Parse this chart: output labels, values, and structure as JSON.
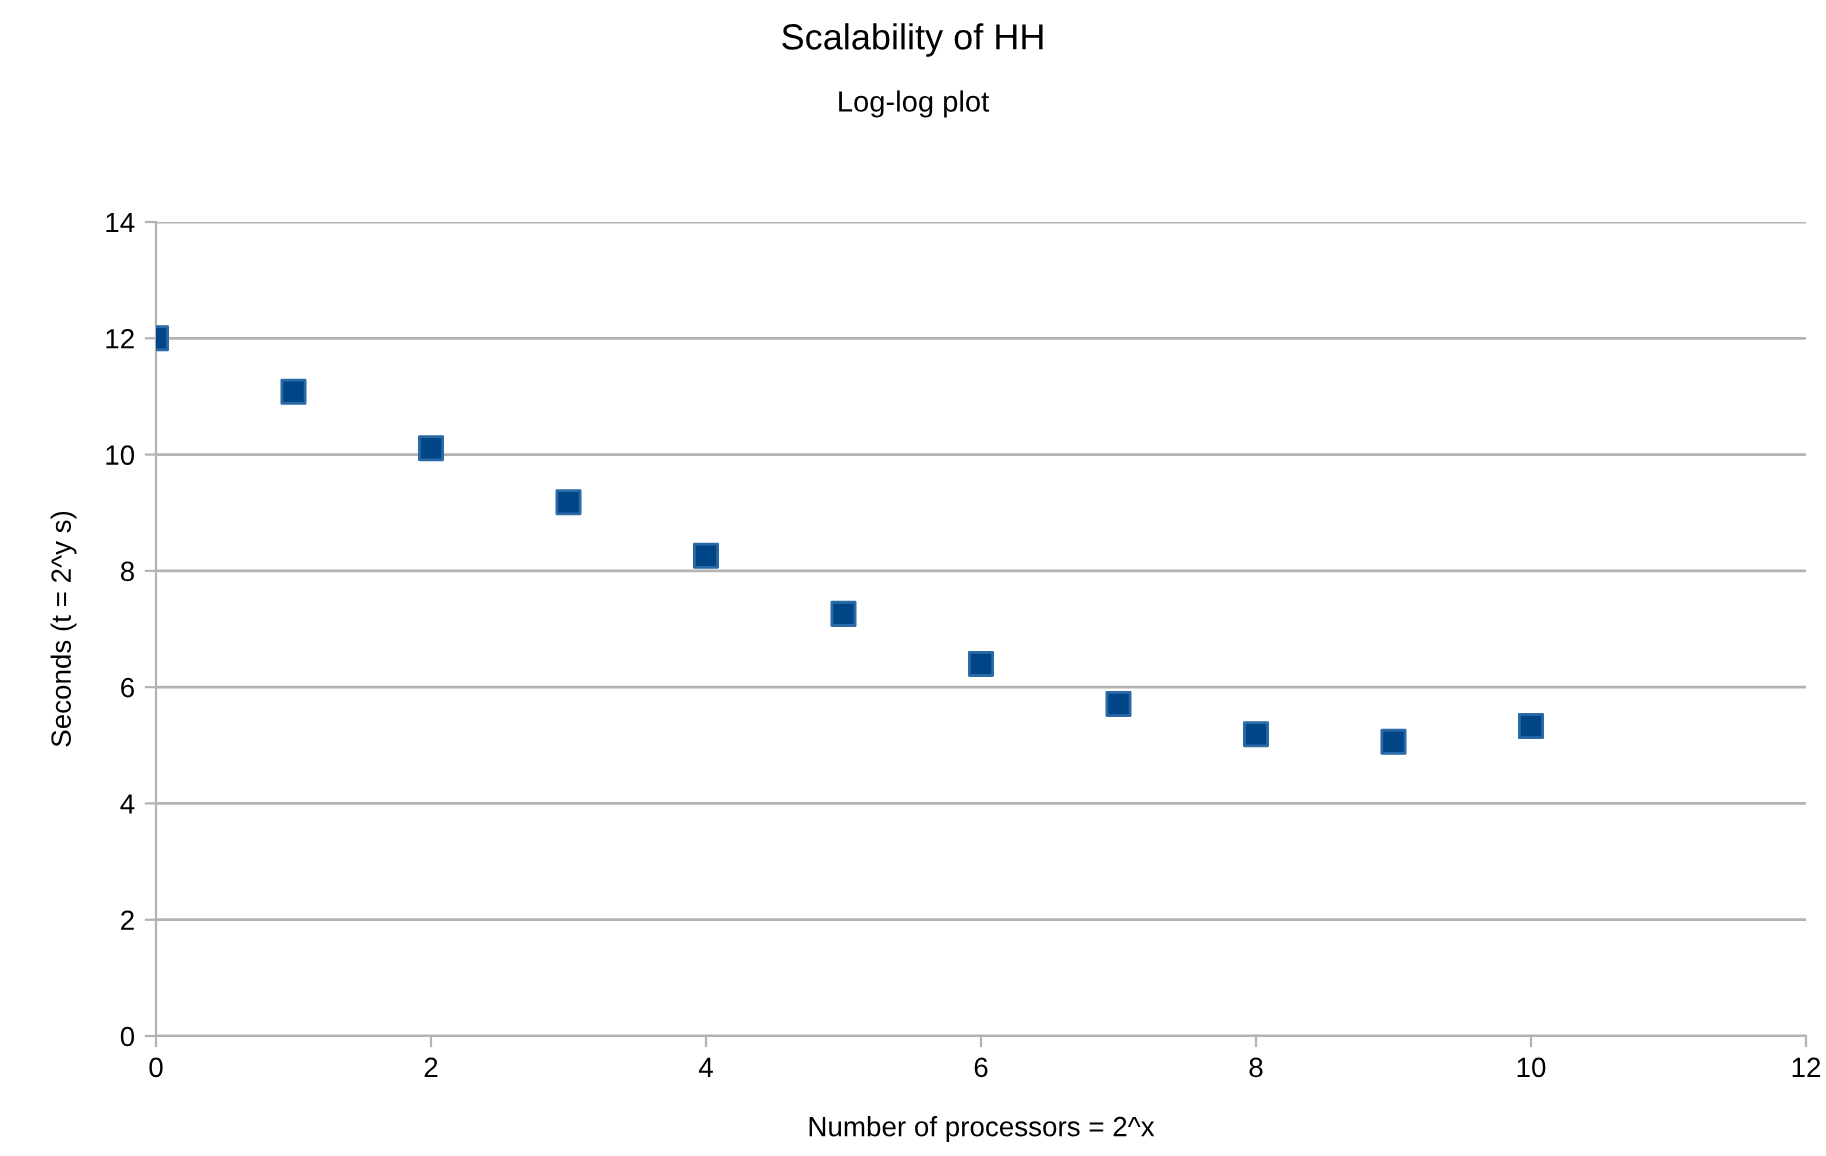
{
  "chart_data": {
    "type": "scatter",
    "title": "Scalability of HH",
    "subtitle": "Log-log plot",
    "xlabel": "Number of processors = 2^x",
    "ylabel": "Seconds (t = 2^y s)",
    "x": [
      0,
      1,
      2,
      3,
      4,
      5,
      6,
      7,
      8,
      9,
      10
    ],
    "series": [
      {
        "color": "#004586",
        "values": [
          12.0,
          11.08,
          10.11,
          9.18,
          8.26,
          7.26,
          6.4,
          5.71,
          5.19,
          5.06,
          5.33
        ]
      }
    ],
    "xlim": [
      0,
      12
    ],
    "xticks": [
      0,
      2,
      4,
      6,
      8,
      10,
      12
    ],
    "ylim": [
      0,
      14
    ],
    "yticks": [
      0,
      2,
      4,
      6,
      8,
      10,
      12,
      14
    ],
    "grid": "y",
    "marker": "square",
    "legend": false
  }
}
